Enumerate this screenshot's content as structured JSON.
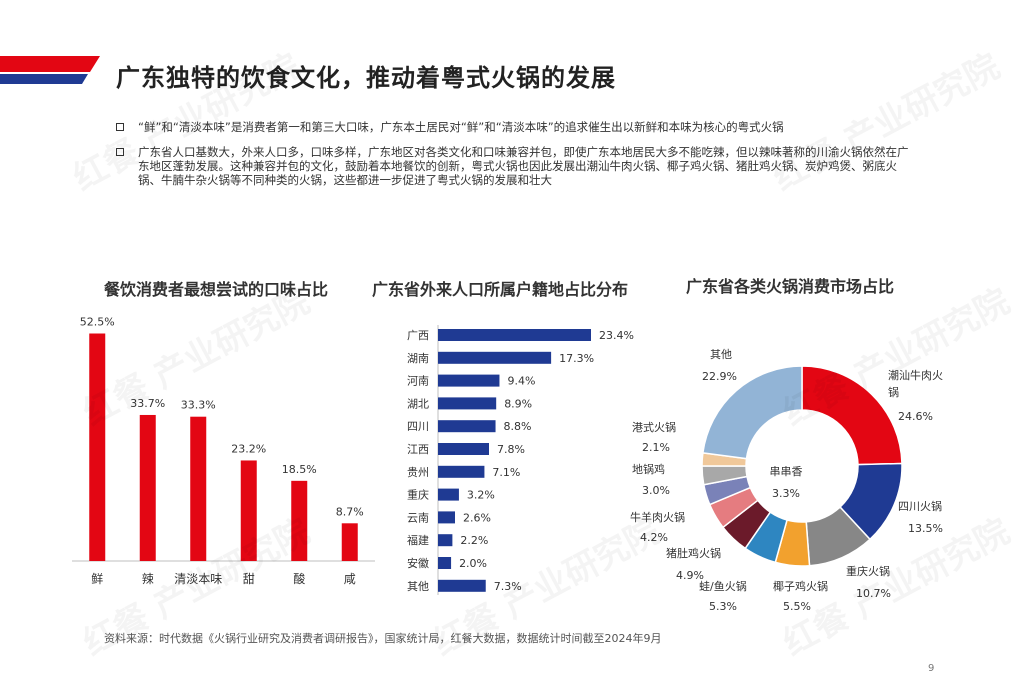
{
  "page": {
    "title": "广东独特的饮食文化，推动着粤式火锅的发展",
    "bullets": [
      "“鲜”和“清淡本味”是消费者第一和第三大口味，广东本土居民对“鲜”和“清淡本味”的追求催生出以新鲜和本味为核心的粤式火锅",
      "广东省人口基数大，外来人口多，口味多样，广东地区对各类文化和口味兼容并包，即使广东本地居民大多不能吃辣，但以辣味著称的川渝火锅依然在广东地区蓬勃发展。这种兼容并包的文化，鼓励着本地餐饮的创新，粤式火锅也因此发展出潮汕牛肉火锅、椰子鸡火锅、猪肚鸡火锅、炭炉鸡煲、粥底火锅、牛腩牛杂火锅等不同种类的火锅，这些都进一步促进了粤式火锅的发展和壮大"
    ],
    "source": "资料来源：时代数据《火锅行业研究及消费者调研报告》，国家统计局，红餐大数据，数据统计时间截至2024年9月",
    "page_number": "9",
    "watermark": "产业研究院",
    "watermark_logo": "红餐"
  },
  "colors": {
    "red": "#e30613",
    "navy": "#1f3a93",
    "donut": [
      "#e30613",
      "#1f3a93",
      "#878787",
      "#f2a12e",
      "#2e86c1",
      "#6b1a2a",
      "#e57c80",
      "#7a82b8",
      "#a8a8a8",
      "#f0c89a",
      "#92b4d6"
    ]
  },
  "chart_data": [
    {
      "type": "bar",
      "title": "餐饮消费者最想尝试的口味占比",
      "categories": [
        "鲜",
        "辣",
        "清淡本味",
        "甜",
        "酸",
        "咸"
      ],
      "values": [
        52.5,
        33.7,
        33.3,
        23.2,
        18.5,
        8.7
      ],
      "value_labels": [
        "52.5%",
        "33.7%",
        "33.3%",
        "23.2%",
        "18.5%",
        "8.7%"
      ],
      "unit": "%",
      "ylim": [
        0,
        60
      ],
      "grid": false
    },
    {
      "type": "bar",
      "orientation": "horizontal",
      "title": "广东省外来人口所属户籍地占比分布",
      "categories": [
        "广西",
        "湖南",
        "河南",
        "湖北",
        "四川",
        "江西",
        "贵州",
        "重庆",
        "云南",
        "福建",
        "安徽",
        "其他"
      ],
      "values": [
        23.4,
        17.3,
        9.4,
        8.9,
        8.8,
        7.8,
        7.1,
        3.2,
        2.6,
        2.2,
        2.0,
        7.3
      ],
      "value_labels": [
        "23.4%",
        "17.3%",
        "9.4%",
        "8.9%",
        "8.8%",
        "7.8%",
        "7.1%",
        "3.2%",
        "2.6%",
        "2.2%",
        "2.0%",
        "7.3%"
      ],
      "unit": "%",
      "xlim": [
        0,
        25
      ],
      "grid": false
    },
    {
      "type": "pie",
      "style": "donut",
      "title": "广东省各类火锅消费市场占比",
      "labels": [
        "潮汕牛肉火锅",
        "四川火锅",
        "重庆火锅",
        "椰子鸡火锅",
        "蛙/鱼火锅",
        "猪肚鸡火锅",
        "牛羊肉火锅",
        "串串香",
        "地锅鸡",
        "港式火锅",
        "其他"
      ],
      "label_lines": [
        [
          "潮汕牛肉火",
          "锅"
        ],
        [
          "四川火锅"
        ],
        [
          "重庆火锅"
        ],
        [
          "椰子鸡火锅"
        ],
        [
          "蛙/鱼火锅"
        ],
        [
          "猪肚鸡火锅"
        ],
        [
          "牛羊肉火锅"
        ],
        [
          "串串香"
        ],
        [
          "地锅鸡"
        ],
        [
          "港式火锅"
        ],
        [
          "其他"
        ]
      ],
      "values": [
        24.6,
        13.5,
        10.7,
        5.5,
        5.3,
        4.9,
        4.2,
        3.3,
        3.0,
        2.1,
        22.9
      ],
      "value_labels": [
        "24.6%",
        "13.5%",
        "10.7%",
        "5.5%",
        "5.3%",
        "4.9%",
        "4.2%",
        "3.3%",
        "3.0%",
        "2.1%",
        "22.9%"
      ],
      "unit": "%"
    }
  ]
}
